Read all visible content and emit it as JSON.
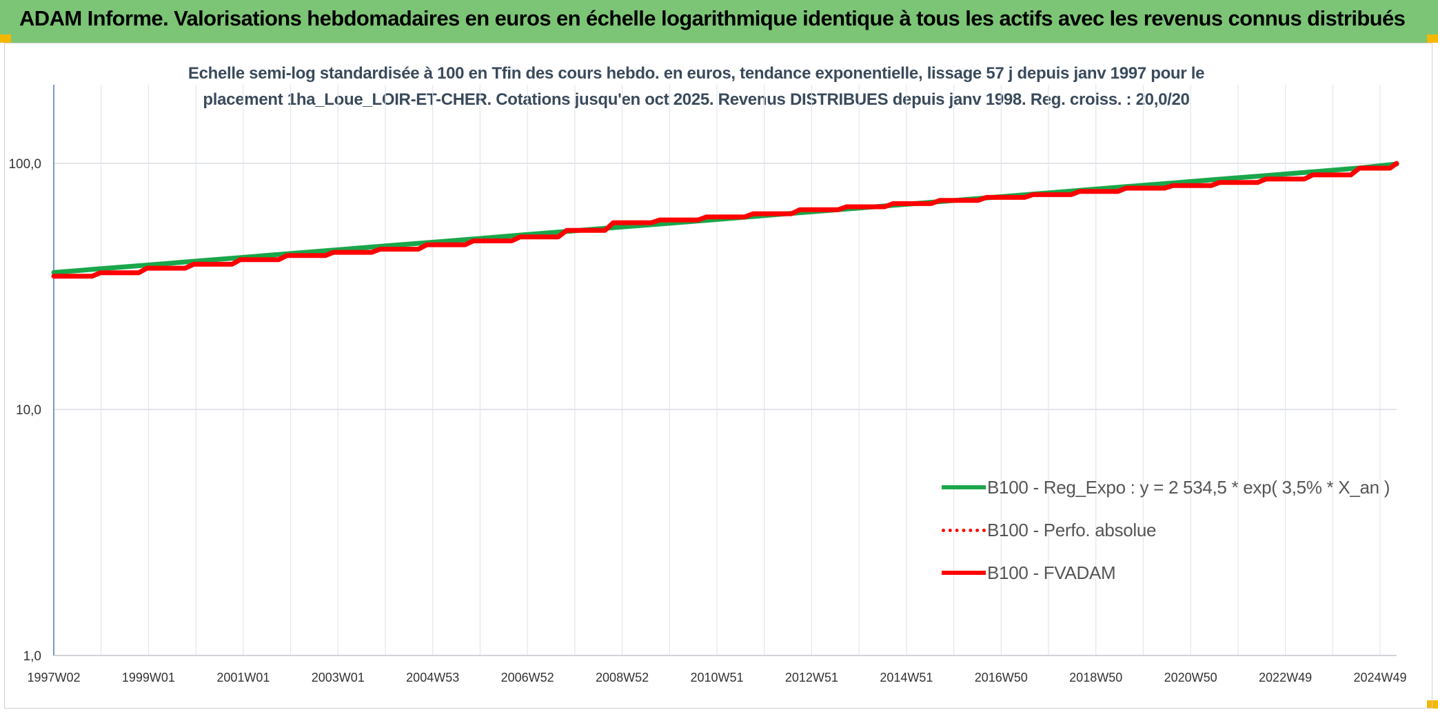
{
  "header": {
    "title": "ADAM Informe. Valorisations hebdomadaires en euros en échelle logarithmique identique à tous les actifs avec les revenus connus distribués"
  },
  "colors": {
    "header_bg": "#7cc576",
    "corner_accent": "#f5b800",
    "trend_green": "#1aa64a",
    "series_red": "#ff0000"
  },
  "chart_data": {
    "type": "line",
    "title": "Echelle semi-log standardisée à 100 en Tfin des cours hebdo. en euros, tendance exponentielle, lissage 57 j depuis janv 1997 pour le placement 1ha_Loue_LOIR-ET-CHER. Cotations jusqu'en oct 2025. Revenus DISTRIBUES depuis janv 1998. Reg. croiss. : 20,0/20",
    "yscale": "log",
    "ylim": [
      1,
      100
    ],
    "y_tick_labels": [
      "100,0",
      "10,0",
      "1,0"
    ],
    "x_tick_labels": [
      "1997W02",
      "1999W01",
      "2001W01",
      "2003W01",
      "2004W53",
      "2006W52",
      "2008W52",
      "2010W51",
      "2012W51",
      "2014W51",
      "2016W50",
      "2018W50",
      "2020W50",
      "2022W49",
      "2024W49"
    ],
    "grid": true,
    "legend_position": "bottom-right",
    "x": [
      1997.0,
      1998.0,
      1999.0,
      2000.0,
      2001.0,
      2002.0,
      2003.0,
      2004.0,
      2005.0,
      2006.0,
      2007.0,
      2008.0,
      2009.0,
      2010.0,
      2011.0,
      2012.0,
      2013.0,
      2014.0,
      2015.0,
      2016.0,
      2017.0,
      2018.0,
      2019.0,
      2020.0,
      2021.0,
      2022.0,
      2023.0,
      2024.0,
      2025.0,
      2025.8
    ],
    "series": [
      {
        "name": "B100 - Reg_Expo : y = 2 534,5 * exp( 3,5% *  X_an )",
        "style": "solid-thick",
        "color": "#1aa64a",
        "values": [
          36.0,
          37.3,
          38.6,
          40.0,
          41.4,
          42.9,
          44.4,
          46.0,
          47.6,
          49.3,
          51.1,
          52.9,
          54.8,
          56.7,
          58.7,
          60.8,
          63.0,
          65.2,
          67.5,
          69.9,
          72.4,
          75.0,
          77.6,
          80.4,
          83.2,
          86.2,
          89.2,
          92.4,
          95.7,
          99.4
        ]
      },
      {
        "name": "B100 - Perfo. absolue",
        "style": "dotted",
        "color": "#ff0000",
        "values": [
          34.8,
          35.9,
          37.5,
          38.9,
          40.6,
          42.2,
          43.5,
          44.8,
          46.7,
          48.4,
          50.2,
          53.4,
          57.4,
          58.9,
          60.6,
          62.4,
          64.8,
          66.6,
          68.6,
          70.7,
          72.7,
          74.6,
          76.9,
          79.3,
          81.2,
          83.6,
          86.3,
          89.8,
          95.6,
          100.0
        ]
      },
      {
        "name": "B100 - FVADAM",
        "style": "solid-thick",
        "color": "#ff0000",
        "values": [
          34.8,
          35.9,
          37.5,
          38.9,
          40.6,
          42.2,
          43.5,
          44.8,
          46.7,
          48.4,
          50.2,
          53.4,
          57.4,
          58.9,
          60.6,
          62.4,
          64.8,
          66.6,
          68.6,
          70.7,
          72.7,
          74.6,
          76.9,
          79.3,
          81.2,
          83.6,
          86.3,
          89.8,
          95.6,
          100.0
        ]
      }
    ]
  }
}
